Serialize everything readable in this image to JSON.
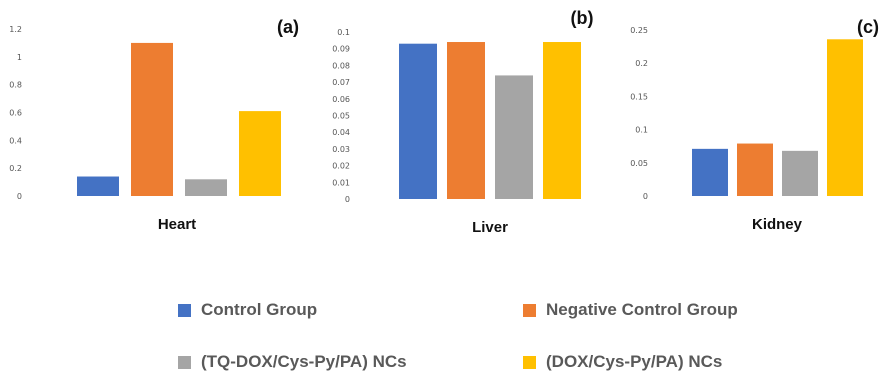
{
  "colors": {
    "control": "#4472C4",
    "negative": "#ED7D31",
    "tq": "#A5A5A5",
    "dox": "#FFC000"
  },
  "chart_data": [
    {
      "type": "bar",
      "panel": "(a)",
      "categories": [
        "Heart"
      ],
      "ylim": [
        0,
        1.2
      ],
      "yticks": [
        "0",
        "0.2",
        "0.4",
        "0.6",
        "0.8",
        "1",
        "1.2"
      ],
      "series": [
        {
          "name": "Control Group",
          "values": [
            0.14
          ]
        },
        {
          "name": "Negative Control Group",
          "values": [
            1.1
          ]
        },
        {
          "name": "(TQ-DOX/Cys-Py/PA) NCs",
          "values": [
            0.12
          ]
        },
        {
          "name": "(DOX/Cys-Py/PA) NCs",
          "values": [
            0.61
          ]
        }
      ]
    },
    {
      "type": "bar",
      "panel": "(b)",
      "categories": [
        "Liver"
      ],
      "ylim": [
        0,
        0.1
      ],
      "yticks": [
        "0",
        "0.01",
        "0.02",
        "0.03",
        "0.04",
        "0.05",
        "0.06",
        "0.07",
        "0.08",
        "0.09",
        "0.1"
      ],
      "series": [
        {
          "name": "Control Group",
          "values": [
            0.093
          ]
        },
        {
          "name": "Negative Control Group",
          "values": [
            0.094
          ]
        },
        {
          "name": "(TQ-DOX/Cys-Py/PA) NCs",
          "values": [
            0.074
          ]
        },
        {
          "name": "(DOX/Cys-Py/PA) NCs",
          "values": [
            0.094
          ]
        }
      ]
    },
    {
      "type": "bar",
      "panel": "(c)",
      "categories": [
        "Kidney"
      ],
      "ylim": [
        0,
        0.25
      ],
      "yticks": [
        "0",
        "0.05",
        "0.1",
        "0.15",
        "0.2",
        "0.25"
      ],
      "series": [
        {
          "name": "Control Group",
          "values": [
            0.071
          ]
        },
        {
          "name": "Negative Control Group",
          "values": [
            0.079
          ]
        },
        {
          "name": "(TQ-DOX/Cys-Py/PA) NCs",
          "values": [
            0.068
          ]
        },
        {
          "name": "(DOX/Cys-Py/PA) NCs",
          "values": [
            0.236
          ]
        }
      ]
    }
  ],
  "legend": {
    "items": [
      {
        "label": "Control Group",
        "color": "#4472C4"
      },
      {
        "label": "Negative Control Group",
        "color": "#ED7D31"
      },
      {
        "label": "(TQ-DOX/Cys-Py/PA) NCs",
        "color": "#A5A5A5"
      },
      {
        "label": "(DOX/Cys-Py/PA) NCs",
        "color": "#FFC000"
      }
    ]
  }
}
